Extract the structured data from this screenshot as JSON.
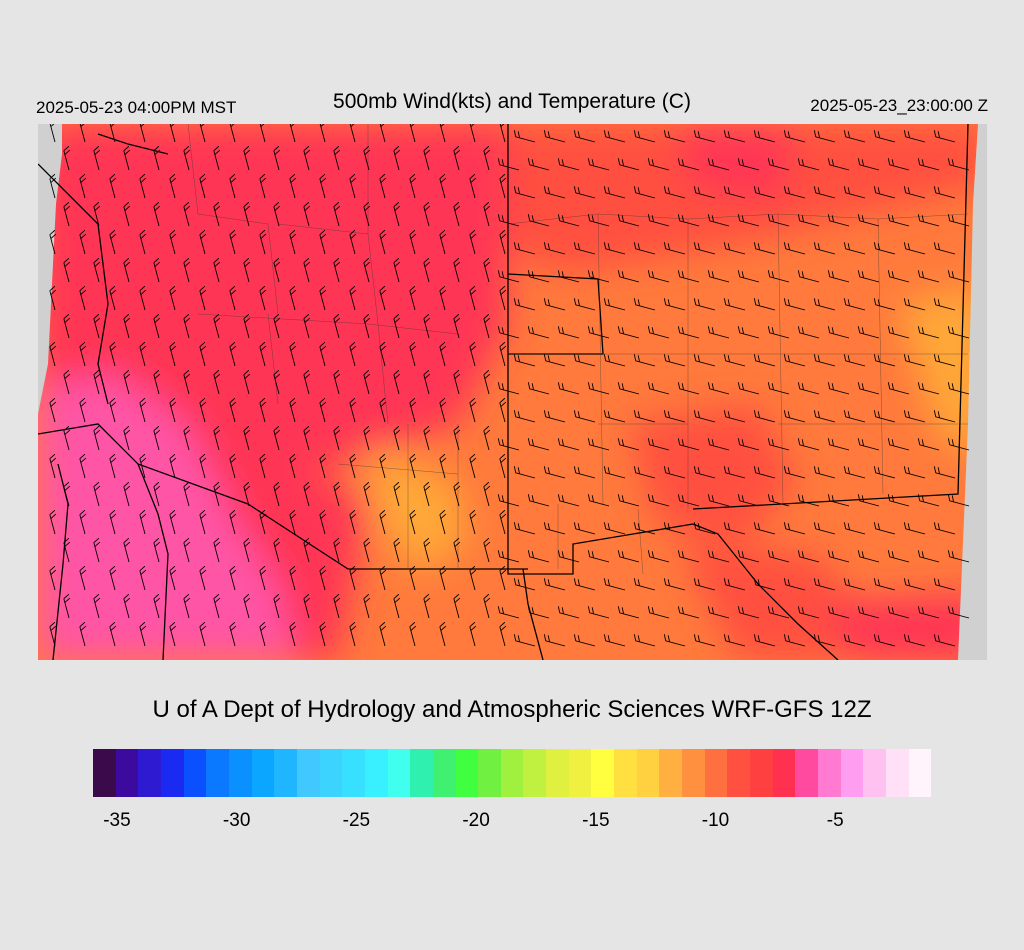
{
  "header": {
    "title": "500mb Wind(kts) and Temperature (C)",
    "local_time": "2025-05-23 04:00PM MST",
    "valid_time": "2025-05-23_23:00:00 Z"
  },
  "credit": "U of A Dept of Hydrology and Atmospheric Sciences WRF-GFS 12Z",
  "colorbar": {
    "unit": "C",
    "min": -36,
    "max": -1,
    "colors": [
      "#3a0a4a",
      "#3d0aa0",
      "#2e1ad0",
      "#1a2af0",
      "#0a50ff",
      "#0a78ff",
      "#0a90ff",
      "#0aa6ff",
      "#20b6ff",
      "#40c8ff",
      "#3cd4ff",
      "#38e0ff",
      "#38f0ff",
      "#40ffee",
      "#30f0b0",
      "#40f070",
      "#40ff40",
      "#70f040",
      "#a0f040",
      "#c0f040",
      "#e0f040",
      "#f0f040",
      "#ffff40",
      "#ffe040",
      "#ffd040",
      "#ffb040",
      "#ff9040",
      "#ff7040",
      "#ff5040",
      "#ff4040",
      "#ff3050",
      "#ff4aa0",
      "#ff7ad0",
      "#ff9ef0",
      "#ffc2f0",
      "#ffe0f6",
      "#fff4fc"
    ],
    "tick_labels": [
      {
        "label": "-35",
        "value": -35
      },
      {
        "label": "-30",
        "value": -30
      },
      {
        "label": "-25",
        "value": -25
      },
      {
        "label": "-20",
        "value": -20
      },
      {
        "label": "-15",
        "value": -15
      },
      {
        "label": "-10",
        "value": -10
      },
      {
        "label": "-5",
        "value": -5
      }
    ]
  },
  "map_colors": {
    "ocean": "#d0d0d0",
    "cold_pink": "#ff55a6",
    "red": "#ff3654",
    "red_orange": "#ff5040",
    "orange": "#ff7a3c",
    "light_orange": "#ffa838",
    "border": "#000000",
    "barb": "#000000"
  }
}
